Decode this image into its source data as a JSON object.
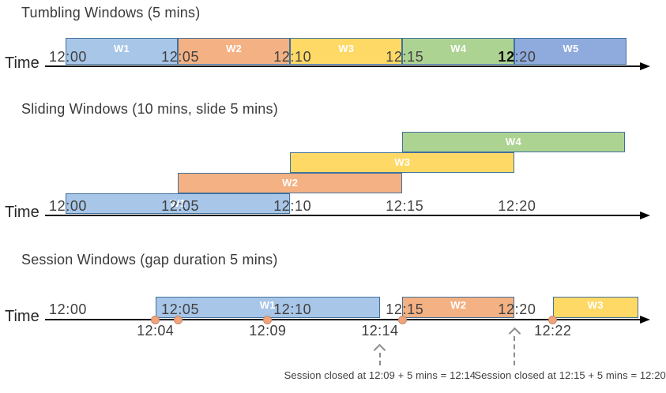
{
  "diagram": {
    "axis_label": "Time",
    "colors": {
      "background": "#ffffff",
      "box_border": "#41719C",
      "axis": "#000000",
      "tick_text": "#404040",
      "title_text": "#3a3a3a",
      "annotation_gray": "#8c8c8c",
      "dot_fill": "#F2A37C",
      "dot_border": "#C08B6B",
      "window_fills": {
        "blue_light": "#A8C6E8",
        "orange": "#F4B183",
        "yellow": "#FFD966",
        "green": "#ADD393",
        "blue_medium": "#8FAADC"
      }
    },
    "sections": [
      {
        "id": "tumbling",
        "title": "Tumbling Windows (5 mins)",
        "ticks": [
          {
            "t": 0,
            "label": "12:00"
          },
          {
            "t": 5,
            "label": "12:05"
          },
          {
            "t": 10,
            "label": "12:10"
          },
          {
            "t": 15,
            "label": "12:15"
          },
          {
            "t": 20,
            "label": "12:20",
            "bold_prefix": "12"
          }
        ],
        "windows": [
          {
            "label": "W1",
            "start_min": 0,
            "end_min": 5,
            "color_key": "blue_light"
          },
          {
            "label": "W2",
            "start_min": 5,
            "end_min": 10,
            "color_key": "orange"
          },
          {
            "label": "W3",
            "start_min": 10,
            "end_min": 15,
            "color_key": "yellow"
          },
          {
            "label": "W4",
            "start_min": 15,
            "end_min": 20,
            "color_key": "green"
          },
          {
            "label": "W5",
            "start_min": 20,
            "end_min": 25,
            "color_key": "blue_medium"
          }
        ]
      },
      {
        "id": "sliding",
        "title": "Sliding Windows (10 mins, slide 5 mins)",
        "ticks": [
          {
            "t": 0,
            "label": "12:00"
          },
          {
            "t": 5,
            "label": "12:05"
          },
          {
            "t": 10,
            "label": "12:10"
          },
          {
            "t": 15,
            "label": "12:15"
          },
          {
            "t": 20,
            "label": "12:20"
          }
        ],
        "windows": [
          {
            "label": "W1",
            "start_min": 0,
            "end_min": 10,
            "row": 0,
            "color_key": "blue_light"
          },
          {
            "label": "W2",
            "start_min": 5,
            "end_min": 15,
            "row": 1,
            "color_key": "orange"
          },
          {
            "label": "W3",
            "start_min": 10,
            "end_min": 20,
            "row": 2,
            "color_key": "yellow"
          },
          {
            "label": "W4",
            "start_min": 15,
            "end_min": 24.9,
            "row": 3,
            "color_key": "green"
          }
        ]
      },
      {
        "id": "session",
        "title": "Session Windows (gap duration 5 mins)",
        "ticks": [
          {
            "t": 0,
            "label": "12:00"
          },
          {
            "t": 5,
            "label": "12:05"
          },
          {
            "t": 10,
            "label": "12:10"
          },
          {
            "t": 15,
            "label": "12:15"
          },
          {
            "t": 20,
            "label": "12:20"
          }
        ],
        "event_dots": [
          {
            "t": 4
          },
          {
            "t": 5
          },
          {
            "t": 9
          },
          {
            "t": 15
          },
          {
            "t": 21.7
          }
        ],
        "event_labels": [
          {
            "t": 4,
            "label": "12:04"
          },
          {
            "t": 9,
            "label": "12:09"
          },
          {
            "t": 14,
            "label": "12:14"
          },
          {
            "t": 21.7,
            "label": "12:22"
          }
        ],
        "windows": [
          {
            "label": "W1",
            "start_min": 4,
            "end_min": 14,
            "color_key": "blue_light"
          },
          {
            "label": "W2",
            "start_min": 15,
            "end_min": 20,
            "color_key": "orange"
          },
          {
            "label": "W3",
            "start_min": 21.7,
            "end_min": 25.5,
            "color_key": "yellow"
          }
        ],
        "annotations": [
          {
            "arrow_t": 14,
            "text": "Session closed at 12:09 + 5 mins = 12:14"
          },
          {
            "arrow_t": 20,
            "text": "Session closed at 12:15 + 5 mins = 12:20"
          }
        ]
      }
    ]
  }
}
